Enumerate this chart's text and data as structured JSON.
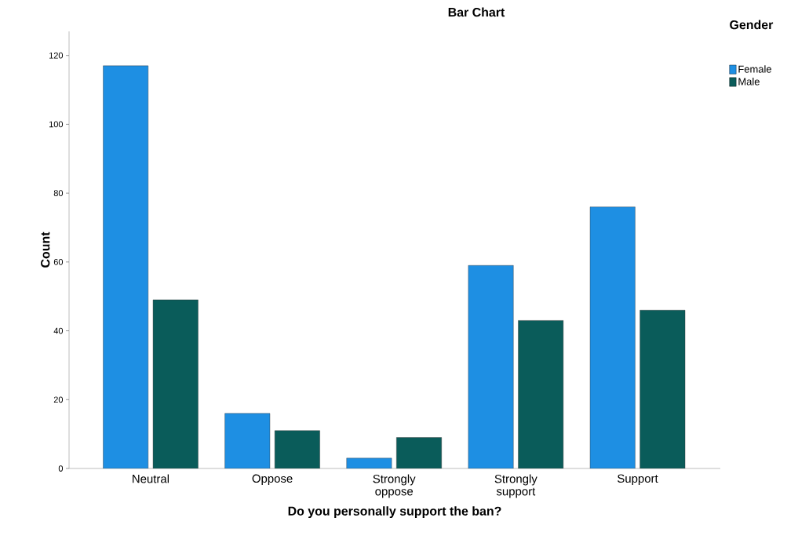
{
  "chart_data": {
    "type": "bar",
    "title": "Bar Chart",
    "xlabel": "Do you personally support the ban?",
    "ylabel": "Count",
    "legend_title": "Gender",
    "categories": [
      "Neutral",
      "Oppose",
      "Strongly oppose",
      "Strongly support",
      "Support"
    ],
    "series": [
      {
        "name": "Female",
        "color": "#1e8fe3",
        "values": [
          117,
          16,
          3,
          59,
          76
        ]
      },
      {
        "name": "Male",
        "color": "#0a5c5a",
        "values": [
          49,
          11,
          9,
          43,
          46
        ]
      }
    ],
    "ylim": [
      0,
      127
    ],
    "yticks": [
      0,
      20,
      40,
      60,
      80,
      100,
      120
    ],
    "grid": false,
    "legend": "top right"
  }
}
